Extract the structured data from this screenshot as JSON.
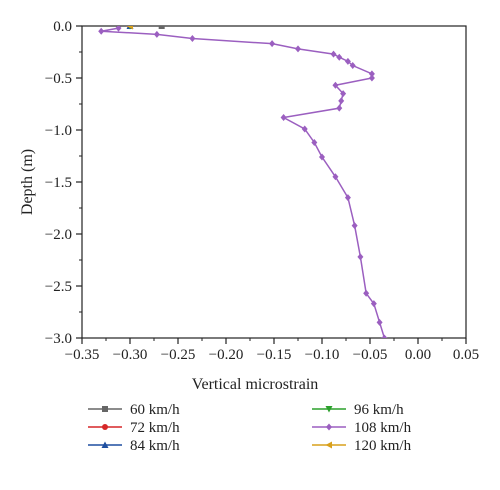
{
  "chart_data": {
    "type": "line",
    "xlabel": "Vertical microstrain",
    "ylabel": "Depth (m)",
    "xlim": [
      -0.35,
      0.05
    ],
    "ylim": [
      -3.0,
      0.0
    ],
    "xticks": [
      -0.35,
      -0.3,
      -0.25,
      -0.2,
      -0.15,
      -0.1,
      -0.05,
      0.0,
      0.05
    ],
    "xtick_labels": [
      "−0.35",
      "−0.30",
      "−0.25",
      "−0.20",
      "−0.15",
      "−0.10",
      "−0.05",
      "0.00",
      "0.05"
    ],
    "yticks": [
      0.0,
      -0.5,
      -1.0,
      -1.5,
      -2.0,
      -2.5,
      -3.0
    ],
    "ytick_labels": [
      "0.0",
      "−0.5",
      "−1.0",
      "−1.5",
      "−2.0",
      "−2.5",
      "−3.0"
    ],
    "grid": false,
    "legend_position": "bottom",
    "series": [
      {
        "name": "60 km/h",
        "color": "#666666",
        "marker": "square",
        "x": [
          -0.267
        ],
        "y": [
          0.0
        ]
      },
      {
        "name": "72 km/h",
        "color": "#d62728",
        "marker": "circle",
        "x": [
          -0.3
        ],
        "y": [
          0.0
        ]
      },
      {
        "name": "84 km/h",
        "color": "#1f4fa0",
        "marker": "triangle-up",
        "x": [
          -0.3
        ],
        "y": [
          0.0
        ]
      },
      {
        "name": "96 km/h",
        "color": "#2ca02c",
        "marker": "triangle-down",
        "x": [
          -0.3
        ],
        "y": [
          0.0
        ]
      },
      {
        "name": "108 km/h",
        "color": "#9b5fc0",
        "marker": "diamond",
        "x": [
          -0.312,
          -0.33,
          -0.272,
          -0.235,
          -0.152,
          -0.125,
          -0.088,
          -0.082,
          -0.073,
          -0.068,
          -0.048,
          -0.048,
          -0.086,
          -0.078,
          -0.08,
          -0.082,
          -0.14,
          -0.118,
          -0.108,
          -0.1,
          -0.086,
          -0.073,
          -0.066,
          -0.06,
          -0.054,
          -0.046,
          -0.04,
          -0.035
        ],
        "y": [
          -0.02,
          -0.05,
          -0.08,
          -0.12,
          -0.17,
          -0.22,
          -0.27,
          -0.3,
          -0.34,
          -0.38,
          -0.46,
          -0.5,
          -0.57,
          -0.65,
          -0.72,
          -0.79,
          -0.88,
          -0.99,
          -1.12,
          -1.26,
          -1.45,
          -1.65,
          -1.92,
          -2.22,
          -2.57,
          -2.67,
          -2.85,
          -3.0
        ]
      },
      {
        "name": "120 km/h",
        "color": "#d9a01c",
        "marker": "triangle-left",
        "x": [
          -0.3
        ],
        "y": [
          0.0
        ]
      }
    ]
  }
}
